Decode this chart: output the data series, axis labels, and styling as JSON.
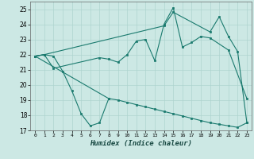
{
  "xlabel": "Humidex (Indice chaleur)",
  "bg_color": "#cce8e4",
  "grid_color": "#aed4cf",
  "line_color": "#1a7a6e",
  "xlim": [
    -0.5,
    23.5
  ],
  "ylim": [
    17,
    25.5
  ],
  "yticks": [
    17,
    18,
    19,
    20,
    21,
    22,
    23,
    24,
    25
  ],
  "xticks": [
    0,
    1,
    2,
    3,
    4,
    5,
    6,
    7,
    8,
    9,
    10,
    11,
    12,
    13,
    14,
    15,
    16,
    17,
    18,
    19,
    20,
    21,
    22,
    23
  ],
  "series1_x": [
    0,
    1,
    2,
    3,
    4,
    5,
    6,
    7,
    8
  ],
  "series1_y": [
    21.9,
    22.0,
    21.9,
    20.9,
    19.6,
    18.1,
    17.3,
    17.5,
    19.1
  ],
  "series2_x": [
    0,
    1,
    2,
    7,
    8,
    9,
    10,
    11,
    12,
    13,
    14,
    15,
    16,
    17,
    18,
    19,
    21,
    23
  ],
  "series2_y": [
    21.9,
    22.0,
    21.1,
    21.8,
    21.7,
    21.5,
    22.0,
    22.9,
    23.0,
    21.6,
    24.0,
    25.1,
    22.5,
    22.8,
    23.2,
    23.1,
    22.3,
    19.1
  ],
  "series3_x": [
    0,
    1,
    14,
    15,
    19,
    20,
    21,
    22,
    23
  ],
  "series3_y": [
    21.9,
    22.0,
    23.9,
    24.8,
    23.5,
    24.5,
    23.2,
    22.2,
    17.5
  ],
  "series4_x": [
    0,
    8,
    9,
    10,
    11,
    12,
    13,
    14,
    15,
    16,
    17,
    18,
    19,
    20,
    21,
    22,
    23
  ],
  "series4_y": [
    21.9,
    19.1,
    19.0,
    18.85,
    18.7,
    18.55,
    18.4,
    18.25,
    18.1,
    17.95,
    17.8,
    17.65,
    17.5,
    17.4,
    17.3,
    17.2,
    17.5
  ]
}
